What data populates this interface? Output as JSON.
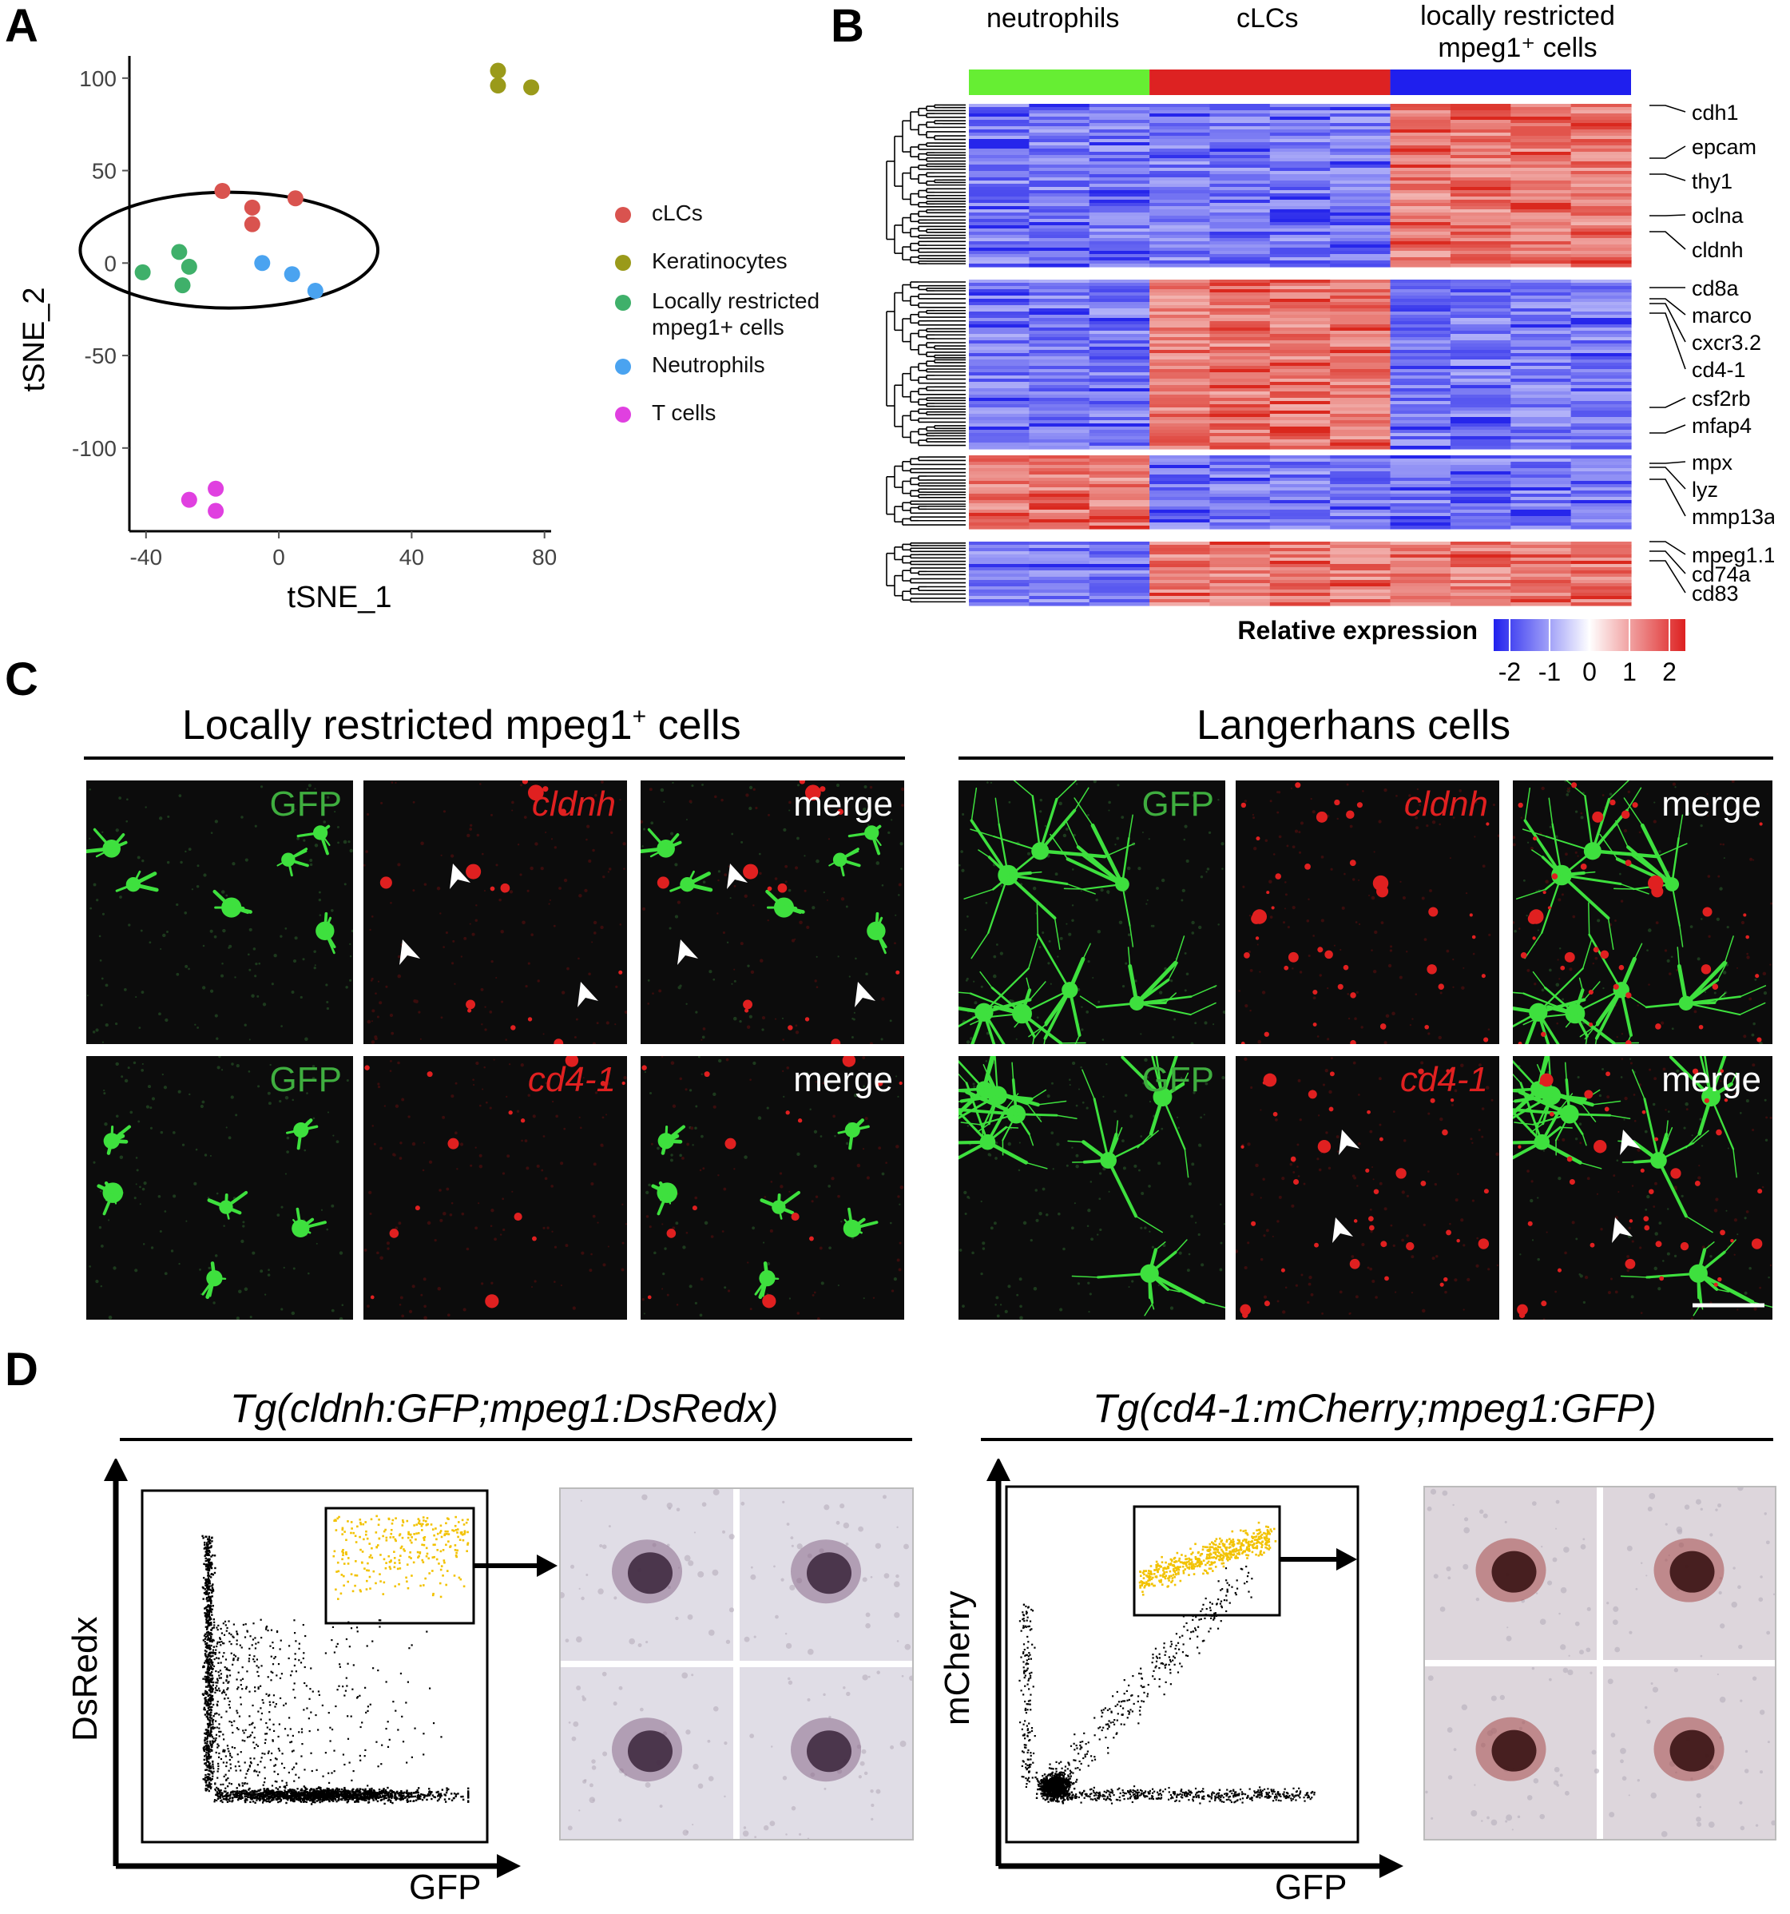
{
  "panels": {
    "a": "A",
    "b": "B",
    "c": "C",
    "d": "D"
  },
  "panel_a": {
    "chart_data": {
      "type": "scatter",
      "xlabel": "tSNE_1",
      "ylabel": "tSNE_2",
      "xlim": [
        -45,
        82
      ],
      "ylim": [
        -145,
        112
      ],
      "xticks": [
        -40,
        0,
        40,
        80
      ],
      "yticks": [
        100,
        50,
        0,
        -50,
        -100
      ],
      "legend_position": "right",
      "series": [
        {
          "name": "cLCs",
          "color": "#d9534f",
          "points": [
            [
              -17,
              39
            ],
            [
              -8,
              30
            ],
            [
              -8,
              21
            ],
            [
              5,
              35
            ]
          ]
        },
        {
          "name": "Keratinocytes",
          "color": "#9a9a1a",
          "points": [
            [
              66,
              104
            ],
            [
              66,
              96
            ],
            [
              76,
              95
            ]
          ]
        },
        {
          "name": "Locally restricted mpeg1+ cells",
          "color": "#3fb06a",
          "points": [
            [
              -41,
              -5
            ],
            [
              -30,
              6
            ],
            [
              -27,
              -2
            ],
            [
              -29,
              -12
            ]
          ]
        },
        {
          "name": "Neutrophils",
          "color": "#4aa3f0",
          "points": [
            [
              -5,
              0
            ],
            [
              4,
              -6
            ],
            [
              11,
              -15
            ]
          ]
        },
        {
          "name": "T cells",
          "color": "#e040e0",
          "points": [
            [
              -27,
              -128
            ],
            [
              -19,
              -122
            ],
            [
              -19,
              -134
            ]
          ]
        }
      ],
      "annotations": [
        "ellipse around cLCs, Locally restricted mpeg1+ cells and Neutrophils clusters"
      ]
    },
    "legend": [
      {
        "label": "cLCs",
        "color": "#d9534f"
      },
      {
        "label": "Keratinocytes",
        "color": "#9a9a1a"
      },
      {
        "label_lines": [
          "Locally restricted",
          "mpeg1+ cells"
        ],
        "color": "#3fb06a"
      },
      {
        "label": "Neutrophils",
        "color": "#4aa3f0"
      },
      {
        "label": "T cells",
        "color": "#e040e0"
      }
    ]
  },
  "panel_b": {
    "chart_data": {
      "type": "heatmap",
      "column_groups": [
        {
          "label": "neutrophils",
          "color": "#66ee33",
          "n_columns": 3
        },
        {
          "label": "cLCs",
          "color": "#dd2222",
          "n_columns": 4
        },
        {
          "label_lines": [
            "locally restricted",
            "mpeg1⁺ cells"
          ],
          "color": "#1f1fee",
          "n_columns": 4
        }
      ],
      "row_blocks": [
        {
          "pattern": [
            "low",
            "low",
            "low",
            "low",
            "low",
            "low",
            "low",
            "high",
            "high",
            "high",
            "high"
          ]
        },
        {
          "pattern": [
            "low",
            "low",
            "low",
            "high",
            "high",
            "high",
            "high",
            "low",
            "low",
            "low",
            "low"
          ]
        },
        {
          "pattern": [
            "high",
            "high",
            "high",
            "low",
            "low",
            "low",
            "low",
            "low",
            "low",
            "low",
            "low"
          ]
        },
        {
          "pattern": [
            "low",
            "low",
            "low",
            "high",
            "high",
            "high",
            "high",
            "high",
            "high",
            "high",
            "high"
          ]
        }
      ],
      "gene_labels": [
        "cdh1",
        "epcam",
        "thy1",
        "oclna",
        "cldnh",
        "cd8a",
        "marco",
        "cxcr3.2",
        "cd4-1",
        "csf2rb",
        "mfap4",
        "mpx",
        "lyz",
        "mmp13a",
        "mpeg1.1",
        "cd74a",
        "cd83"
      ],
      "colorbar": {
        "title": "Relative expression",
        "ticks": [
          "-2",
          "-1",
          "0",
          "1",
          "2"
        ],
        "range": [
          -2,
          2
        ],
        "colors": [
          "#2020ee",
          "#ffffff",
          "#dd2020"
        ]
      }
    }
  },
  "panel_c": {
    "left_title": {
      "pre": "Locally restricted mpeg1",
      "sup": "+",
      "post": " cells"
    },
    "right_title": "Langerhans cells",
    "labels": {
      "gfp": "GFP",
      "cldnh": "cldnh",
      "cd4": "cd4-1",
      "merge": "merge"
    }
  },
  "panel_d": {
    "left_title": "Tg(cldnh:GFP;mpeg1:DsRedx)",
    "right_title": "Tg(cd4-1:mCherry;mpeg1:GFP)",
    "left_ylabel": "DsRedx",
    "left_xlabel": "GFP",
    "right_ylabel": "mCherry",
    "right_xlabel": "GFP",
    "gate_color": "#f2c200"
  }
}
